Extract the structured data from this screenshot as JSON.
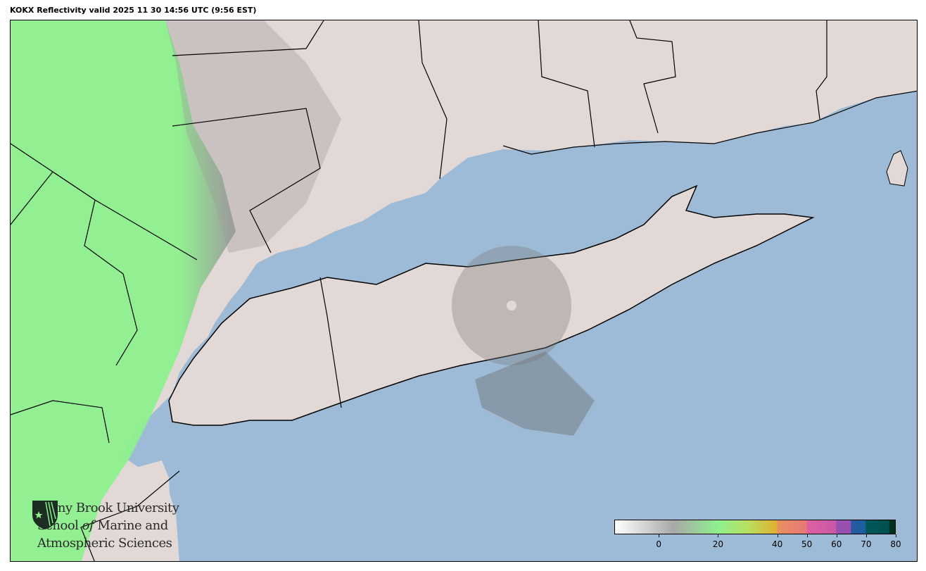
{
  "title": "KOKX Reflectivity valid 2025 11 30 14:56 UTC (9:56 EST)",
  "logo": {
    "line1": "Stony Brook University",
    "line2a": "School ",
    "line2b": "of",
    "line2c": " Marine and",
    "line3": "Atmospheric Sciences"
  },
  "colors": {
    "land": "#e2d8d6",
    "water": "#9dbbd6",
    "echo_green": "#8ef08e",
    "echo_gray": "#8a8a8a"
  },
  "colorbar": {
    "min": -15,
    "max": 80,
    "ticks": [
      0,
      20,
      40,
      50,
      60,
      70,
      80
    ],
    "tick_labels": [
      "0",
      "20",
      "40",
      "50",
      "60",
      "70",
      "80"
    ],
    "stops": [
      {
        "v": -15,
        "c": "#ffffff"
      },
      {
        "v": 5,
        "c": "#a8a8a8"
      },
      {
        "v": 20,
        "c": "#8ef08e"
      },
      {
        "v": 30,
        "c": "#b8e060"
      },
      {
        "v": 40,
        "c": "#e0b030"
      },
      {
        "v": 40.1,
        "c": "#e89060"
      },
      {
        "v": 50,
        "c": "#e87878"
      },
      {
        "v": 50.1,
        "c": "#e060a0"
      },
      {
        "v": 60,
        "c": "#c858a8"
      },
      {
        "v": 60.1,
        "c": "#9850b0"
      },
      {
        "v": 65,
        "c": "#9850b0"
      },
      {
        "v": 65.1,
        "c": "#2858a0"
      },
      {
        "v": 70,
        "c": "#1860a0"
      },
      {
        "v": 70.1,
        "c": "#005858"
      },
      {
        "v": 78,
        "c": "#005050"
      },
      {
        "v": 78.1,
        "c": "#003020"
      },
      {
        "v": 80,
        "c": "#003020"
      }
    ]
  }
}
